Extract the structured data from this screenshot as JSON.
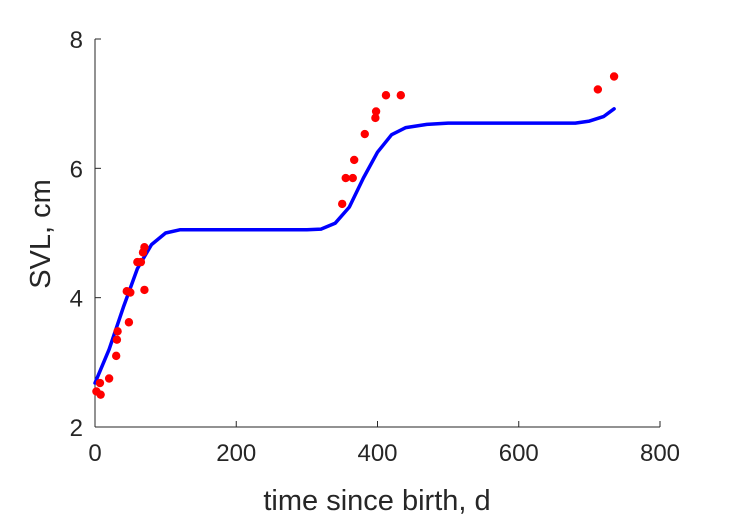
{
  "chart_data": {
    "type": "scatter",
    "title": "",
    "xlabel": "time since birth, d",
    "ylabel": "SVL, cm",
    "xlim": [
      0,
      800
    ],
    "ylim": [
      2,
      8
    ],
    "xticks": [
      0,
      200,
      400,
      600,
      800
    ],
    "yticks": [
      2,
      4,
      6,
      8
    ],
    "xtick_labels": [
      "0",
      "200",
      "400",
      "600",
      "800"
    ],
    "ytick_labels": [
      "2",
      "4",
      "6",
      "8"
    ],
    "grid": false,
    "legend": "none",
    "series": [
      {
        "kind": "points",
        "color": "#ff0000",
        "points": [
          [
            2,
            2.55
          ],
          [
            7,
            2.68
          ],
          [
            8,
            2.5
          ],
          [
            20,
            2.75
          ],
          [
            30,
            3.1
          ],
          [
            31,
            3.35
          ],
          [
            32,
            3.48
          ],
          [
            45,
            4.1
          ],
          [
            48,
            3.62
          ],
          [
            50,
            4.08
          ],
          [
            60,
            4.55
          ],
          [
            65,
            4.55
          ],
          [
            68,
            4.7
          ],
          [
            70,
            4.78
          ],
          [
            70,
            4.12
          ],
          [
            350,
            5.45
          ],
          [
            355,
            5.85
          ],
          [
            365,
            5.85
          ],
          [
            367,
            6.13
          ],
          [
            382,
            6.53
          ],
          [
            397,
            6.78
          ],
          [
            398,
            6.88
          ],
          [
            412,
            7.13
          ],
          [
            433,
            7.13
          ],
          [
            712,
            7.22
          ],
          [
            735,
            7.42
          ]
        ]
      },
      {
        "kind": "line",
        "color": "#0000ff",
        "points": [
          [
            0,
            2.68
          ],
          [
            20,
            3.2
          ],
          [
            40,
            3.85
          ],
          [
            60,
            4.45
          ],
          [
            80,
            4.82
          ],
          [
            100,
            5.0
          ],
          [
            120,
            5.05
          ],
          [
            150,
            5.05
          ],
          [
            200,
            5.05
          ],
          [
            250,
            5.05
          ],
          [
            300,
            5.05
          ],
          [
            320,
            5.06
          ],
          [
            340,
            5.15
          ],
          [
            360,
            5.4
          ],
          [
            380,
            5.85
          ],
          [
            400,
            6.25
          ],
          [
            420,
            6.52
          ],
          [
            440,
            6.63
          ],
          [
            470,
            6.68
          ],
          [
            500,
            6.7
          ],
          [
            550,
            6.7
          ],
          [
            600,
            6.7
          ],
          [
            650,
            6.7
          ],
          [
            680,
            6.7
          ],
          [
            700,
            6.73
          ],
          [
            720,
            6.8
          ],
          [
            735,
            6.92
          ]
        ]
      }
    ]
  }
}
